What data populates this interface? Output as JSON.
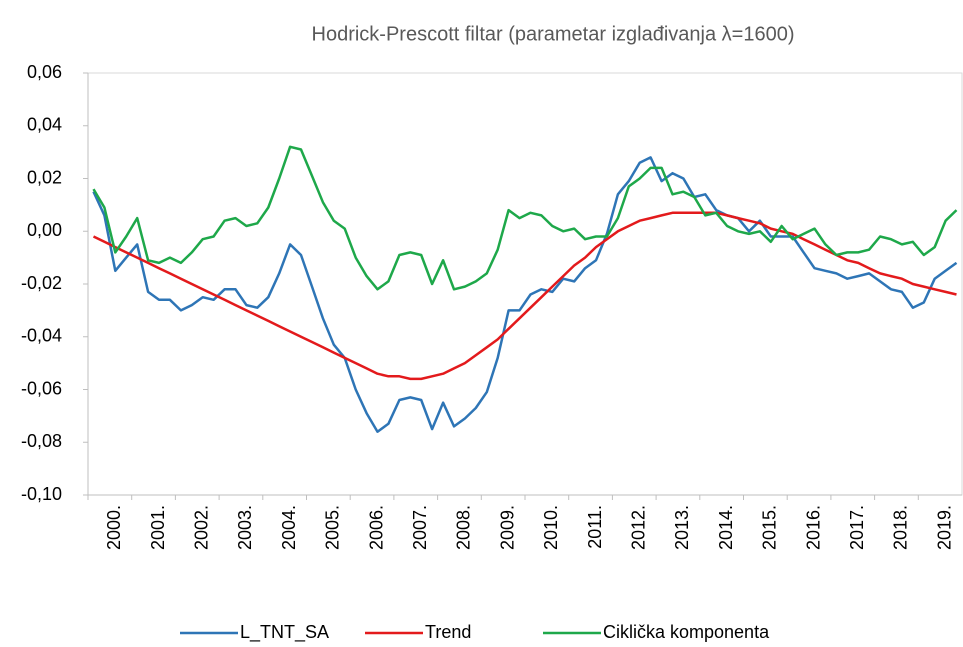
{
  "chart_data": {
    "type": "line",
    "title": "Hodrick-Prescott filtar (parametar izglađivanja λ=1600)",
    "categories": [
      null,
      null,
      "2000.",
      null,
      null,
      null,
      "2001.",
      null,
      null,
      null,
      "2002.",
      null,
      null,
      null,
      "2003.",
      null,
      null,
      null,
      "2004.",
      null,
      null,
      null,
      "2005.",
      null,
      null,
      null,
      "2006.",
      null,
      null,
      null,
      "2007.",
      null,
      null,
      null,
      "2008.",
      null,
      null,
      null,
      "2009.",
      null,
      null,
      null,
      "2010.",
      null,
      null,
      null,
      "2011.",
      null,
      null,
      null,
      "2012.",
      null,
      null,
      null,
      "2013.",
      null,
      null,
      null,
      "2014.",
      null,
      null,
      null,
      "2015.",
      null,
      null,
      null,
      "2016.",
      null,
      null,
      null,
      "2017.",
      null,
      null,
      null,
      "2018.",
      null,
      null,
      null,
      "2019.",
      null
    ],
    "series": [
      {
        "name": "L_TNT_SA",
        "color": "#2e75b6",
        "values": [
          0.015,
          0.006,
          -0.015,
          -0.01,
          -0.005,
          -0.023,
          -0.026,
          -0.026,
          -0.03,
          -0.028,
          -0.025,
          -0.026,
          -0.022,
          -0.022,
          -0.028,
          -0.029,
          -0.025,
          -0.016,
          -0.005,
          -0.009,
          -0.021,
          -0.033,
          -0.043,
          -0.048,
          -0.06,
          -0.069,
          -0.076,
          -0.073,
          -0.064,
          -0.063,
          -0.064,
          -0.075,
          -0.065,
          -0.074,
          -0.071,
          -0.067,
          -0.061,
          -0.048,
          -0.03,
          -0.03,
          -0.024,
          -0.022,
          -0.023,
          -0.018,
          -0.019,
          -0.014,
          -0.011,
          -0.001,
          0.014,
          0.019,
          0.026,
          0.028,
          0.019,
          0.022,
          0.02,
          0.013,
          0.014,
          0.008,
          0.006,
          0.005,
          0.0,
          0.004,
          -0.002,
          -0.002,
          -0.002,
          -0.008,
          -0.014,
          -0.015,
          -0.016,
          -0.018,
          -0.017,
          -0.016,
          -0.019,
          -0.022,
          -0.023,
          -0.029,
          -0.027,
          -0.018,
          -0.015,
          -0.012
        ]
      },
      {
        "name": "Trend",
        "color": "#e31a1c",
        "values": [
          -0.002,
          -0.004,
          -0.006,
          -0.008,
          -0.01,
          -0.012,
          -0.014,
          -0.016,
          -0.018,
          -0.02,
          -0.022,
          -0.024,
          -0.026,
          -0.028,
          -0.03,
          -0.032,
          -0.034,
          -0.036,
          -0.038,
          -0.04,
          -0.042,
          -0.044,
          -0.046,
          -0.048,
          -0.05,
          -0.052,
          -0.054,
          -0.055,
          -0.055,
          -0.056,
          -0.056,
          -0.055,
          -0.054,
          -0.052,
          -0.05,
          -0.047,
          -0.044,
          -0.041,
          -0.037,
          -0.033,
          -0.029,
          -0.025,
          -0.021,
          -0.017,
          -0.013,
          -0.01,
          -0.006,
          -0.003,
          0.0,
          0.002,
          0.004,
          0.005,
          0.006,
          0.007,
          0.007,
          0.007,
          0.007,
          0.007,
          0.006,
          0.005,
          0.004,
          0.003,
          0.001,
          0.0,
          -0.001,
          -0.003,
          -0.005,
          -0.007,
          -0.009,
          -0.011,
          -0.012,
          -0.014,
          -0.016,
          -0.017,
          -0.018,
          -0.02,
          -0.021,
          -0.022,
          -0.023,
          -0.024
        ]
      },
      {
        "name": "Ciklička komponenta",
        "color": "#1ea84a",
        "values": [
          0.016,
          0.009,
          -0.008,
          -0.002,
          0.005,
          -0.011,
          -0.012,
          -0.01,
          -0.012,
          -0.008,
          -0.003,
          -0.002,
          0.004,
          0.005,
          0.002,
          0.003,
          0.009,
          0.02,
          0.032,
          0.031,
          0.021,
          0.011,
          0.004,
          0.001,
          -0.01,
          -0.017,
          -0.022,
          -0.019,
          -0.009,
          -0.008,
          -0.009,
          -0.02,
          -0.011,
          -0.022,
          -0.021,
          -0.019,
          -0.016,
          -0.007,
          0.008,
          0.005,
          0.007,
          0.006,
          0.002,
          0.0,
          0.001,
          -0.003,
          -0.002,
          -0.002,
          0.005,
          0.017,
          0.02,
          0.024,
          0.024,
          0.014,
          0.015,
          0.013,
          0.006,
          0.007,
          0.002,
          0.0,
          -0.001,
          0.0,
          -0.004,
          0.002,
          -0.003,
          -0.001,
          0.001,
          -0.005,
          -0.009,
          -0.008,
          -0.008,
          -0.007,
          -0.002,
          -0.003,
          -0.005,
          -0.004,
          -0.009,
          -0.006,
          0.004,
          0.008
        ]
      }
    ],
    "ylim": [
      -0.1,
      0.06
    ],
    "yticks": [
      {
        "value": -0.1,
        "label": "-0,10"
      },
      {
        "value": -0.08,
        "label": "-0,08"
      },
      {
        "value": -0.06,
        "label": "-0,06"
      },
      {
        "value": -0.04,
        "label": "-0,04"
      },
      {
        "value": -0.02,
        "label": "-0,02"
      },
      {
        "value": 0.0,
        "label": "0,00"
      },
      {
        "value": 0.02,
        "label": "0,02"
      },
      {
        "value": 0.04,
        "label": "0,04"
      },
      {
        "value": 0.06,
        "label": "0,06"
      }
    ],
    "legend": "bottom"
  }
}
